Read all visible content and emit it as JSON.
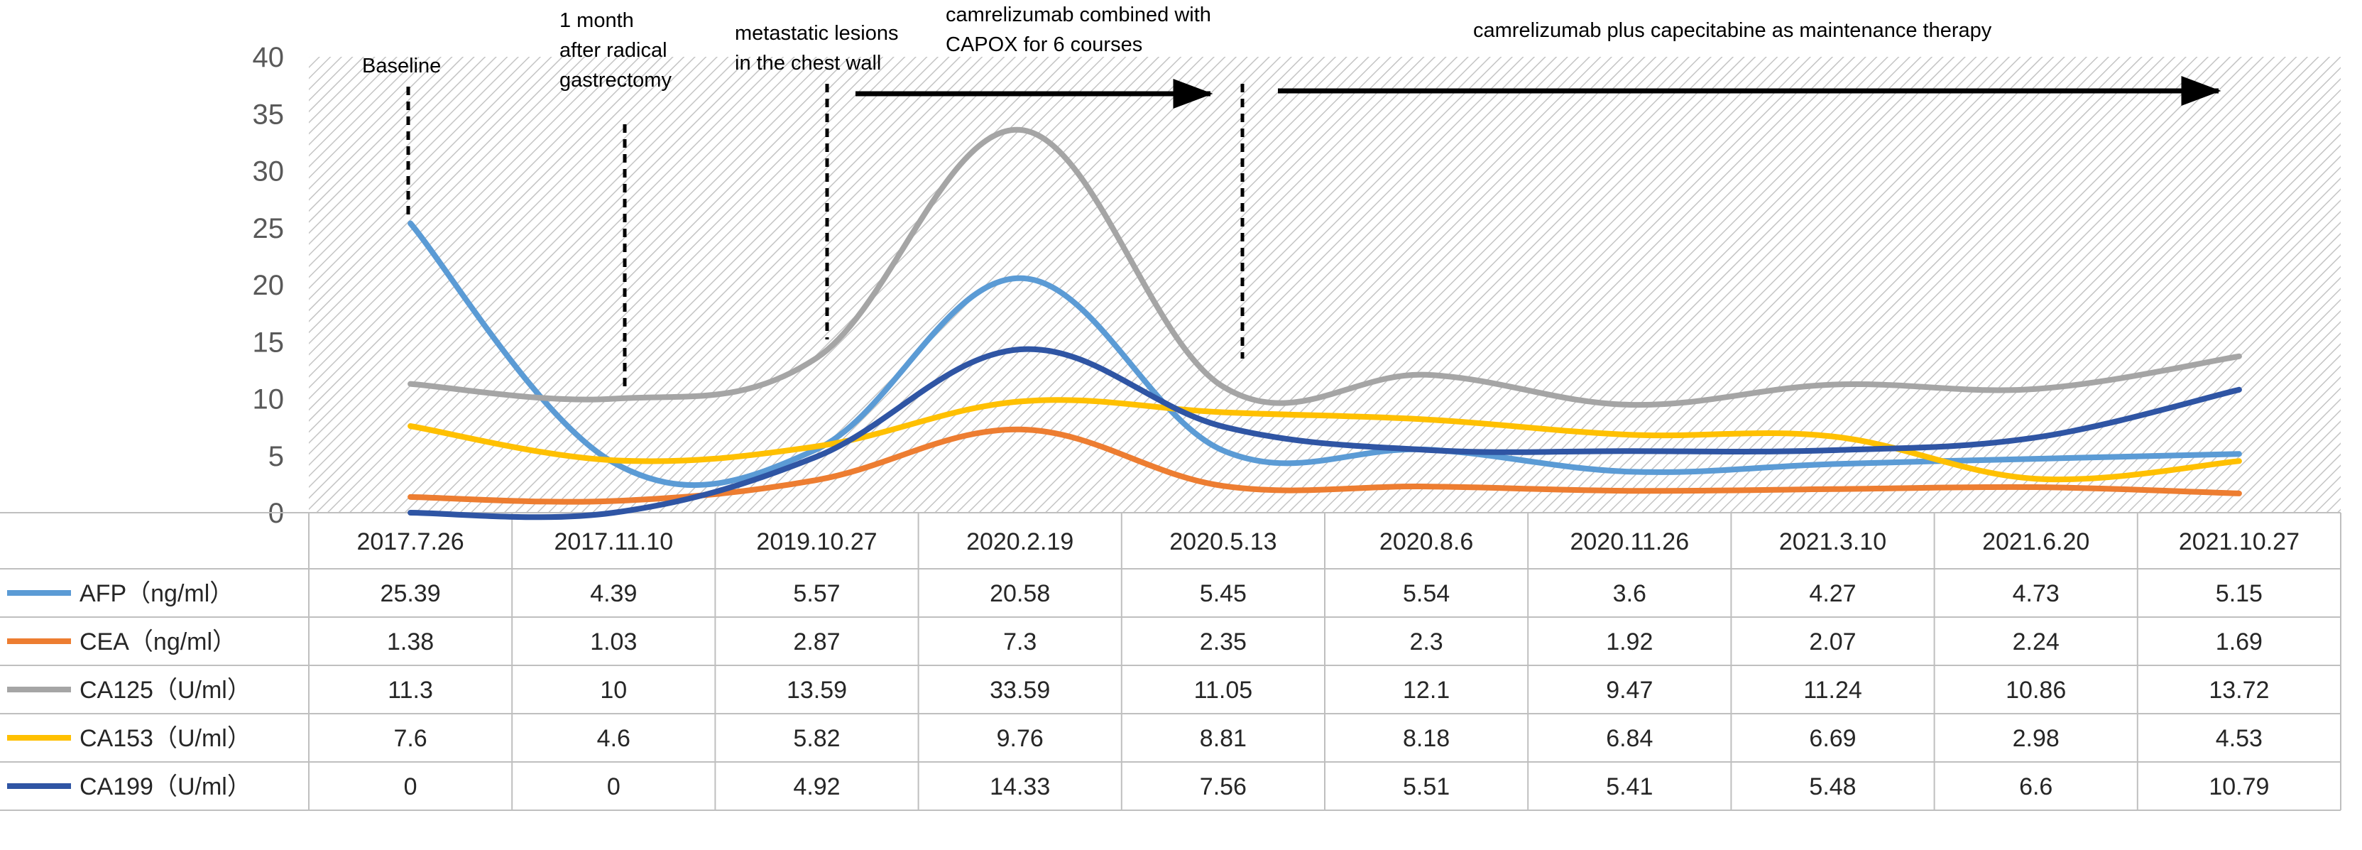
{
  "chart_data": {
    "type": "line",
    "title": "",
    "xlabel": "",
    "ylabel": "",
    "ylim": [
      0,
      40
    ],
    "yticks": [
      0,
      5,
      10,
      15,
      20,
      25,
      30,
      35,
      40
    ],
    "grid": false,
    "categories": [
      "2017.7.26",
      "2017.11.10",
      "2019.10.27",
      "2020.2.19",
      "2020.5.13",
      "2020.8.6",
      "2020.11.26",
      "2021.3.10",
      "2021.6.20",
      "2021.10.27"
    ],
    "series": [
      {
        "name": "AFP（ng/ml）",
        "color": "#5B9BD5",
        "values": [
          25.39,
          4.39,
          5.57,
          20.58,
          5.45,
          5.54,
          3.6,
          4.27,
          4.73,
          5.15
        ],
        "labels": [
          "25.39",
          "4.39",
          "5.57",
          "20.58",
          "5.45",
          "5.54",
          "3.6",
          "4.27",
          "4.73",
          "5.15"
        ]
      },
      {
        "name": "CEA（ng/ml）",
        "color": "#ED7D31",
        "values": [
          1.38,
          1.03,
          2.87,
          7.3,
          2.35,
          2.3,
          1.92,
          2.07,
          2.24,
          1.69
        ],
        "labels": [
          "1.38",
          "1.03",
          "2.87",
          "7.3",
          "2.35",
          "2.3",
          "1.92",
          "2.07",
          "2.24",
          "1.69"
        ]
      },
      {
        "name": "CA125（U/ml）",
        "color": "#A5A5A5",
        "values": [
          11.3,
          10,
          13.59,
          33.59,
          11.05,
          12.1,
          9.47,
          11.24,
          10.86,
          13.72
        ],
        "labels": [
          "11.3",
          "10",
          "13.59",
          "33.59",
          "11.05",
          "12.1",
          "9.47",
          "11.24",
          "10.86",
          "13.72"
        ]
      },
      {
        "name": "CA153（U/ml）",
        "color": "#FFC000",
        "values": [
          7.6,
          4.6,
          5.82,
          9.76,
          8.81,
          8.18,
          6.84,
          6.69,
          2.98,
          4.53
        ],
        "labels": [
          "7.6",
          "4.6",
          "5.82",
          "9.76",
          "8.81",
          "8.18",
          "6.84",
          "6.69",
          "2.98",
          "4.53"
        ]
      },
      {
        "name": "CA199（U/ml）",
        "color": "#2F55A4",
        "values": [
          0,
          0,
          4.92,
          14.33,
          7.56,
          5.51,
          5.41,
          5.48,
          6.6,
          10.79
        ],
        "labels": [
          "0",
          "0",
          "4.92",
          "14.33",
          "7.56",
          "5.51",
          "5.41",
          "5.48",
          "6.6",
          "10.79"
        ]
      }
    ],
    "annotations": [
      {
        "lines": [
          "Baseline"
        ],
        "category_index": 0
      },
      {
        "lines": [
          "1 month",
          "after radical",
          "gastrectomy"
        ],
        "category_index": 1
      },
      {
        "lines": [
          "metastatic lesions",
          "in the chest wall"
        ],
        "category_index": 2
      },
      {
        "lines": [
          "camrelizumab combined with",
          "CAPOX for 6 courses"
        ],
        "category_index": 3
      },
      {
        "lines": [
          "camrelizumab plus capecitabine as maintenance therapy"
        ],
        "category_index": 6
      }
    ]
  }
}
